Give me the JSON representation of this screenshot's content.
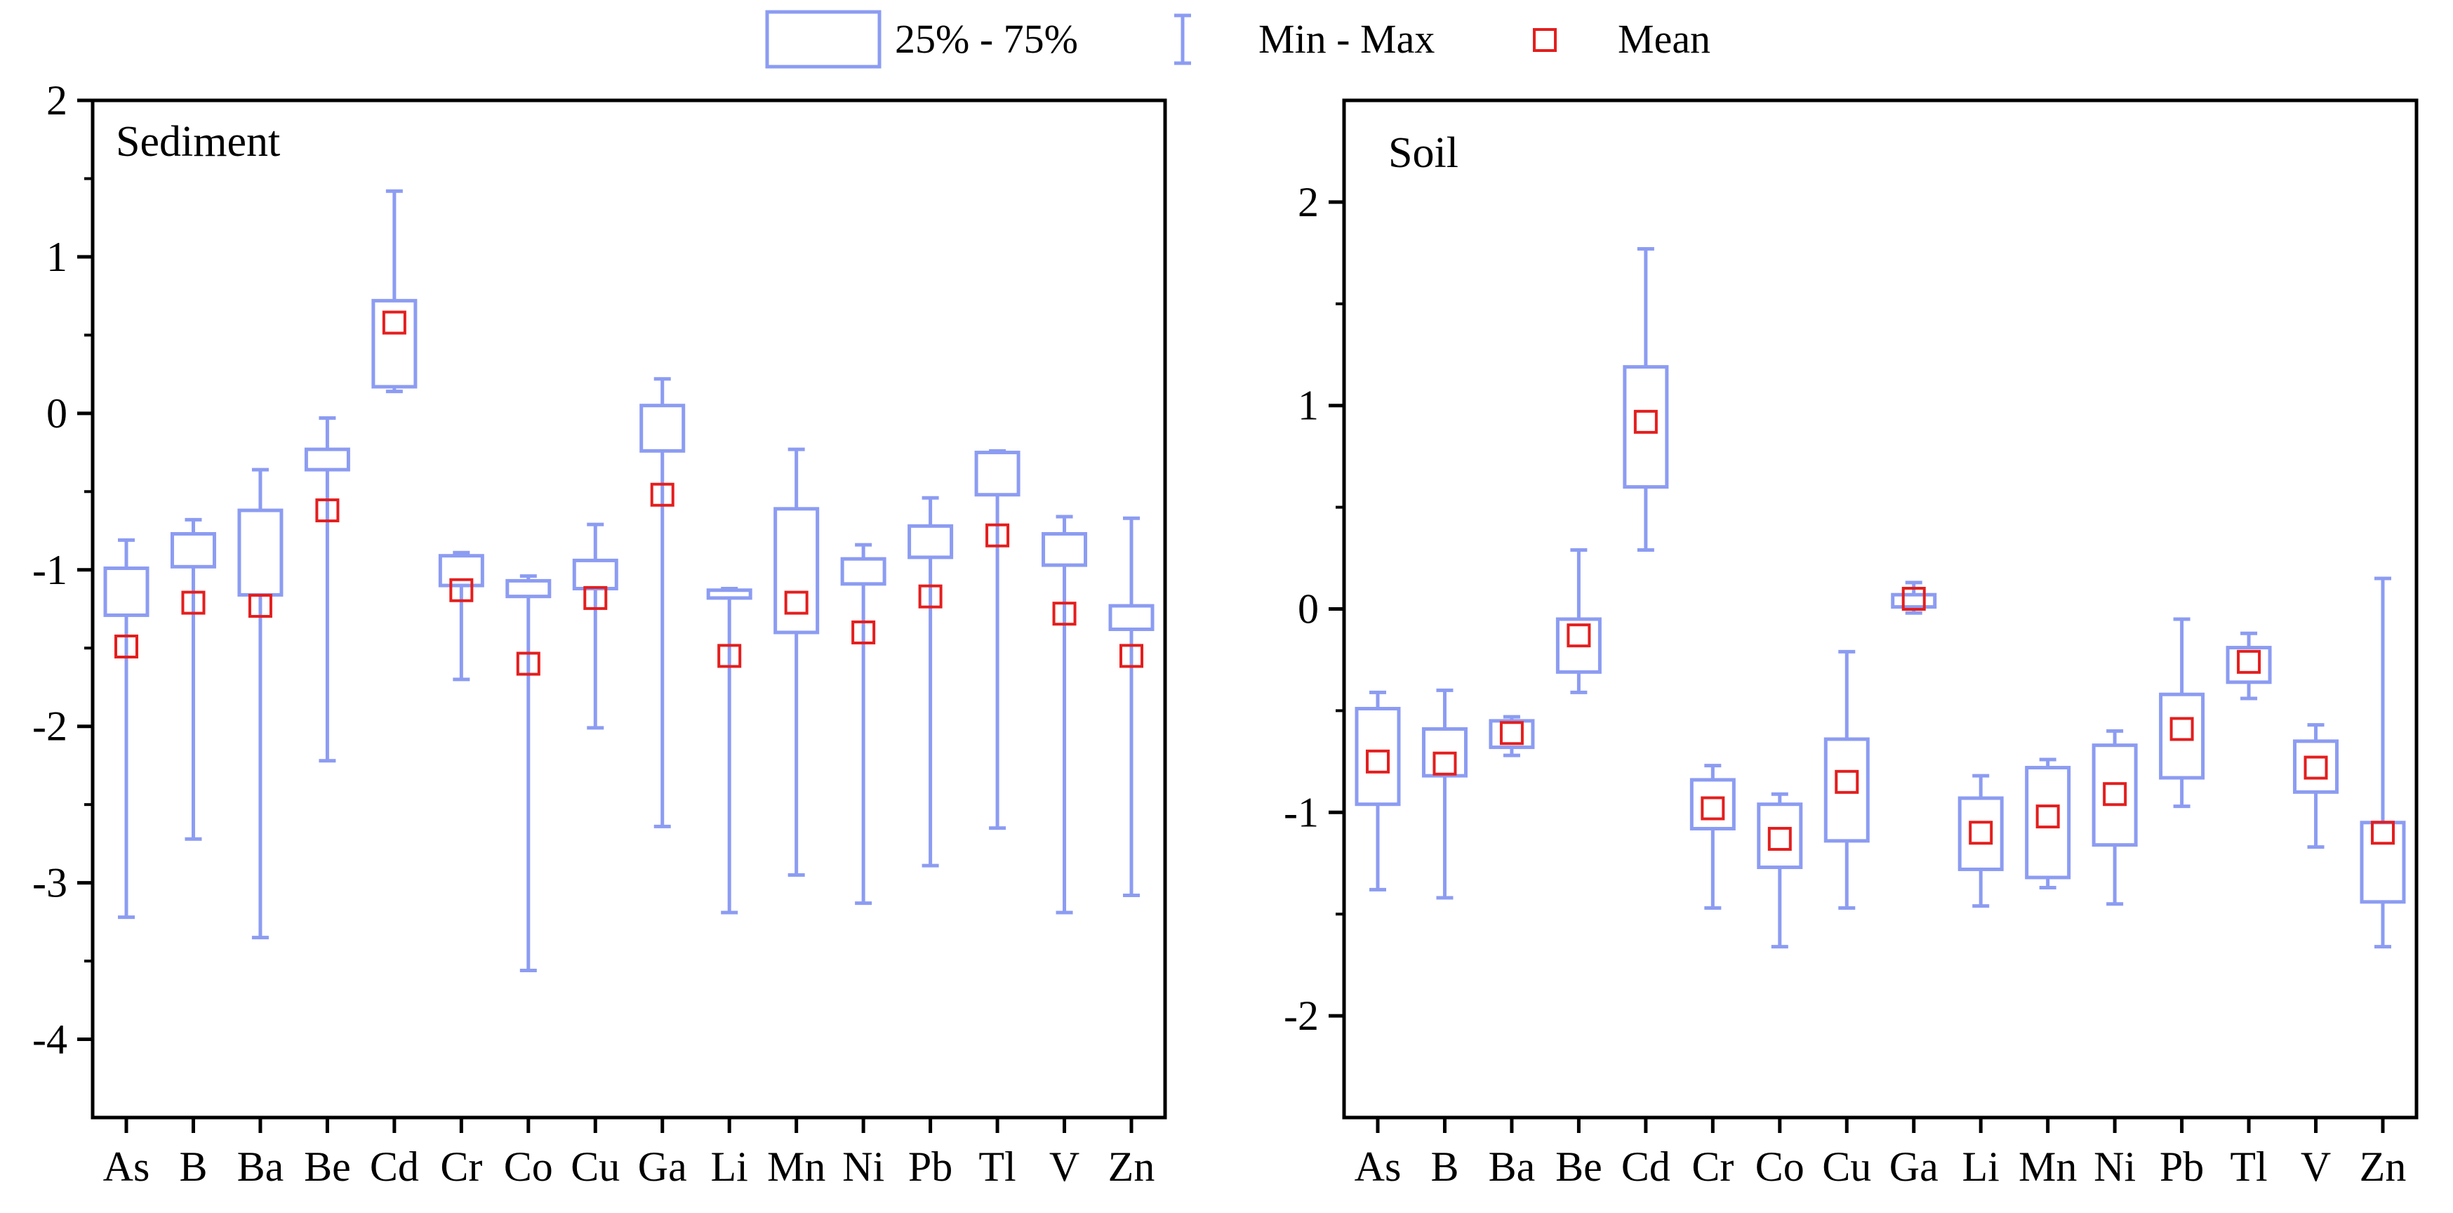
{
  "legend": {
    "box_label": "25% - 75%",
    "whisker_label": "Min - Max",
    "mean_label": "Mean"
  },
  "colors": {
    "box": "#8c9cf2",
    "mean": "#e41e1e",
    "axis": "#000000"
  },
  "chart_data": [
    {
      "type": "box",
      "title": "Sediment",
      "xlabel": "",
      "ylabel": "",
      "ylim": [
        -4.5,
        2
      ],
      "yticks": [
        -4,
        -3,
        -2,
        -1,
        0,
        1,
        2
      ],
      "categories": [
        "As",
        "B",
        "Ba",
        "Be",
        "Cd",
        "Cr",
        "Co",
        "Cu",
        "Ga",
        "Li",
        "Mn",
        "Ni",
        "Pb",
        "Tl",
        "V",
        "Zn"
      ],
      "min": [
        -3.22,
        -2.72,
        -3.35,
        -2.22,
        0.14,
        -1.7,
        -3.56,
        -2.01,
        -2.64,
        -3.19,
        -2.95,
        -3.13,
        -2.89,
        -2.65,
        -3.19,
        -3.08
      ],
      "q1": [
        -1.29,
        -0.98,
        -1.16,
        -0.36,
        0.17,
        -1.1,
        -1.17,
        -1.12,
        -0.24,
        -1.18,
        -1.4,
        -1.09,
        -0.92,
        -0.52,
        -0.97,
        -1.38
      ],
      "q3": [
        -0.99,
        -0.77,
        -0.62,
        -0.23,
        0.72,
        -0.91,
        -1.07,
        -0.94,
        0.05,
        -1.13,
        -0.61,
        -0.93,
        -0.72,
        -0.25,
        -0.77,
        -1.23
      ],
      "max": [
        -0.81,
        -0.68,
        -0.36,
        -0.03,
        1.42,
        -0.89,
        -1.04,
        -0.71,
        0.22,
        -1.12,
        -0.23,
        -0.84,
        -0.54,
        -0.24,
        -0.66,
        -0.67
      ],
      "mean": [
        -1.49,
        -1.21,
        -1.23,
        -0.62,
        0.58,
        -1.13,
        -1.6,
        -1.18,
        -0.52,
        -1.55,
        -1.21,
        -1.4,
        -1.17,
        -0.78,
        -1.28,
        -1.55
      ]
    },
    {
      "type": "box",
      "title": "Soil",
      "xlabel": "",
      "ylabel": "",
      "ylim": [
        -2.5,
        2.5
      ],
      "yticks": [
        -2,
        -1,
        0,
        1,
        2
      ],
      "categories": [
        "As",
        "B",
        "Ba",
        "Be",
        "Cd",
        "Cr",
        "Co",
        "Cu",
        "Ga",
        "Li",
        "Mn",
        "Ni",
        "Pb",
        "Tl",
        "V",
        "Zn"
      ],
      "min": [
        -1.38,
        -1.42,
        -0.72,
        -0.41,
        0.29,
        -1.47,
        -1.66,
        -1.47,
        -0.02,
        -1.46,
        -1.37,
        -1.45,
        -0.97,
        -0.44,
        -1.17,
        -1.66
      ],
      "q1": [
        -0.96,
        -0.82,
        -0.68,
        -0.31,
        0.6,
        -1.08,
        -1.27,
        -1.14,
        0.01,
        -1.28,
        -1.32,
        -1.16,
        -0.83,
        -0.36,
        -0.9,
        -1.44
      ],
      "q3": [
        -0.49,
        -0.59,
        -0.55,
        -0.05,
        1.19,
        -0.84,
        -0.96,
        -0.64,
        0.07,
        -0.93,
        -0.78,
        -0.67,
        -0.42,
        -0.19,
        -0.65,
        -1.05
      ],
      "max": [
        -0.41,
        -0.4,
        -0.53,
        0.29,
        1.77,
        -0.77,
        -0.91,
        -0.21,
        0.13,
        -0.82,
        -0.74,
        -0.6,
        -0.05,
        -0.12,
        -0.57,
        0.15
      ],
      "mean": [
        -0.75,
        -0.76,
        -0.61,
        -0.13,
        0.92,
        -0.98,
        -1.13,
        -0.85,
        0.05,
        -1.1,
        -1.02,
        -0.91,
        -0.59,
        -0.26,
        -0.78,
        -1.1
      ]
    }
  ]
}
